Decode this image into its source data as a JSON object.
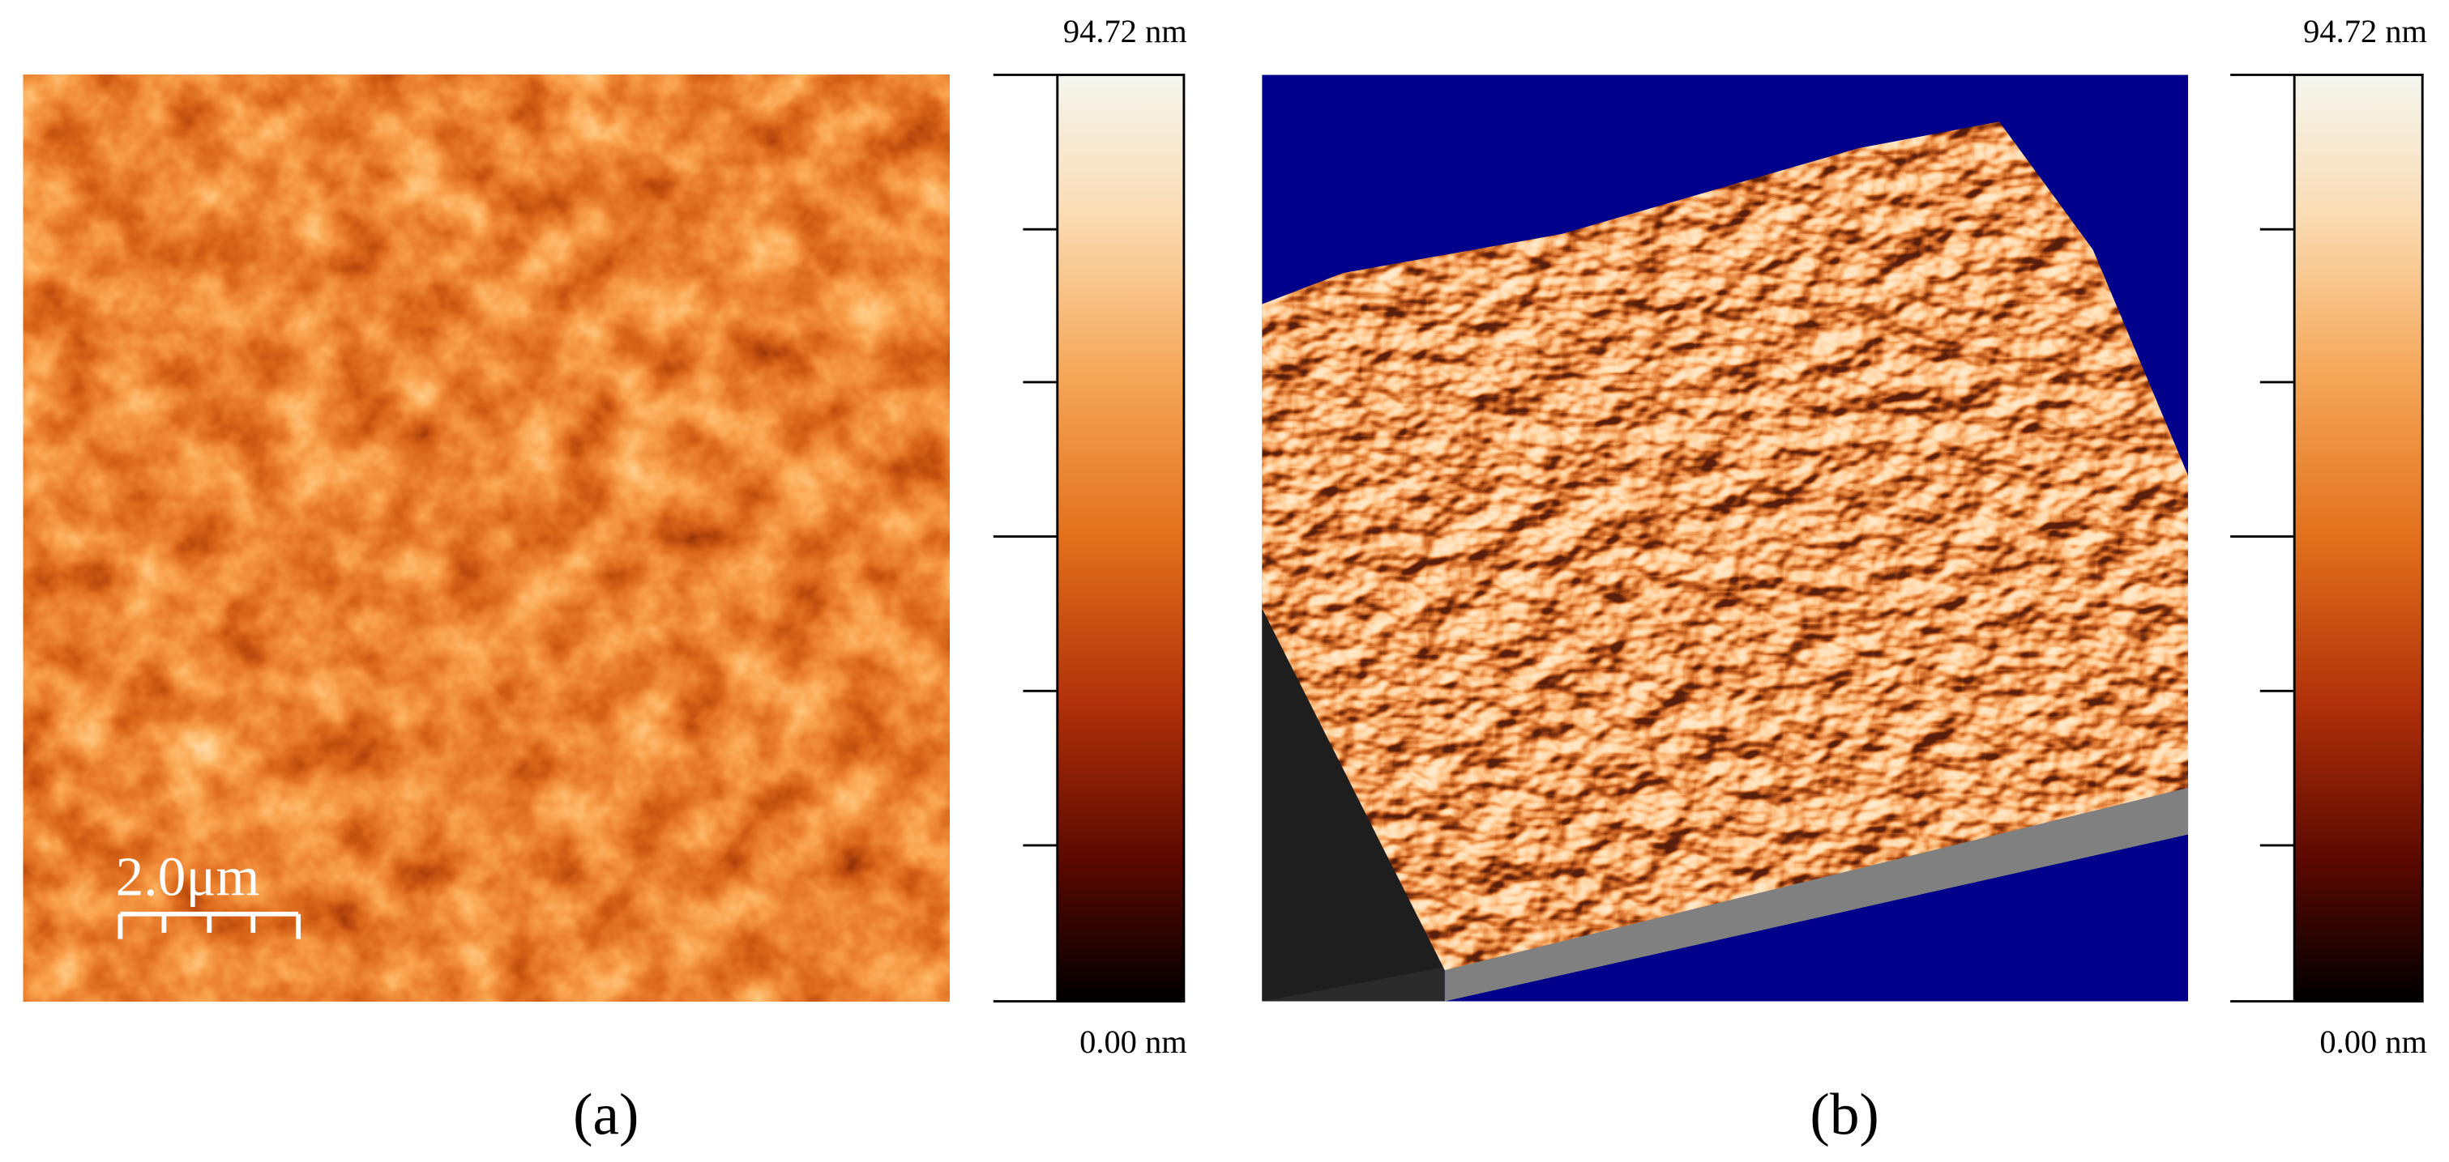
{
  "panels": [
    {
      "label": "(a)",
      "scale_bar": "2.0μm",
      "colorbar": {
        "max": "94.72 nm",
        "min": "0.00 nm"
      }
    },
    {
      "label": "(b)",
      "colorbar": {
        "max": "94.72 nm",
        "min": "0.00 nm"
      }
    }
  ]
}
